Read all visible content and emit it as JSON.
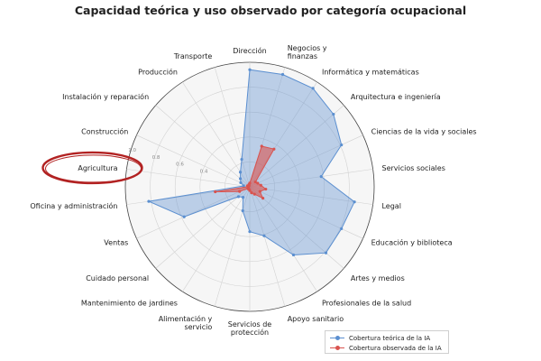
{
  "chart_data": {
    "type": "radar",
    "title": "Capacidad teórica y uso observado por categoría ocupacional",
    "categories": [
      "Dirección",
      "Negocios y finanzas",
      "Informática y matemáticas",
      "Arquitectura e ingeniería",
      "Ciencias de la vida y sociales",
      "Servicios sociales",
      "Legal",
      "Educación y biblioteca",
      "Artes y medios",
      "Profesionales de la salud",
      "Apoyo sanitario",
      "Servicios de protección",
      "Alimentación y servicio",
      "Mantenimiento de jardines",
      "Cuidado personal",
      "Ventas",
      "Oficina y administración",
      "Agricultura",
      "Construcción",
      "Instalación y reparación",
      "Producción",
      "Transporte"
    ],
    "radial_ticks": [
      "0.4",
      "0.6",
      "0.8",
      "1.0"
    ],
    "rlim": [
      0,
      1
    ],
    "series": [
      {
        "name": "Cobertura teórica de la IA",
        "color": "#5b8fd0",
        "values": [
          0.94,
          0.94,
          0.94,
          0.89,
          0.81,
          0.58,
          0.85,
          0.81,
          0.81,
          0.65,
          0.41,
          0.36,
          0.2,
          0.1,
          0.12,
          0.58,
          0.82,
          0.05,
          0.08,
          0.1,
          0.14,
          0.23
        ]
      },
      {
        "name": "Cobertura observada de la IA",
        "color": "#d9534f",
        "values": [
          0.03,
          0.34,
          0.36,
          0.06,
          0.07,
          0.09,
          0.13,
          0.09,
          0.14,
          0.07,
          0.05,
          0.03,
          0.02,
          0.02,
          0.02,
          0.09,
          0.28,
          0.01,
          0.02,
          0.01,
          0.01,
          0.02
        ]
      }
    ],
    "legend_position": "bottom-right",
    "grid": true
  }
}
